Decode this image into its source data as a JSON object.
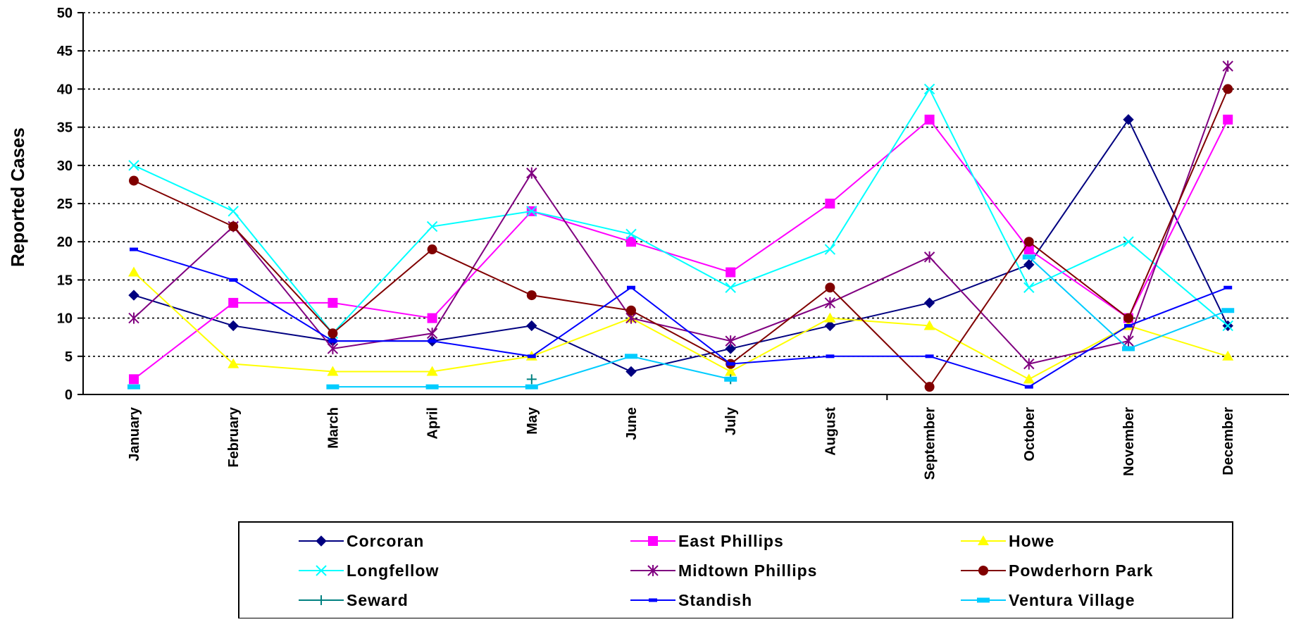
{
  "chart_data": {
    "type": "line",
    "title": "",
    "xlabel": "",
    "ylabel": "Reported Cases",
    "ylim": [
      0,
      50
    ],
    "y_ticks": [
      0,
      5,
      10,
      15,
      20,
      25,
      30,
      35,
      40,
      45,
      50
    ],
    "grid": "horizontal dotted",
    "legend_position": "bottom",
    "categories": [
      "January",
      "February",
      "March",
      "April",
      "May",
      "June",
      "July",
      "August",
      "September",
      "October",
      "November",
      "December"
    ],
    "series": [
      {
        "name": "Corcoran",
        "color": "#000080",
        "marker": "diamond",
        "values": [
          13,
          9,
          7,
          7,
          9,
          3,
          6,
          9,
          12,
          17,
          36,
          9
        ]
      },
      {
        "name": "East Phillips",
        "color": "#FF00FF",
        "marker": "square",
        "values": [
          2,
          12,
          12,
          10,
          24,
          20,
          16,
          25,
          36,
          19,
          10,
          36
        ]
      },
      {
        "name": "Howe",
        "color": "#FFFF00",
        "marker": "triangle",
        "values": [
          16,
          4,
          3,
          3,
          5,
          10,
          3,
          10,
          9,
          2,
          9,
          5
        ]
      },
      {
        "name": "Longfellow",
        "color": "#00FFFF",
        "marker": "x",
        "values": [
          30,
          24,
          8,
          22,
          24,
          21,
          14,
          19,
          40,
          14,
          20,
          9
        ]
      },
      {
        "name": "Midtown Phillips",
        "color": "#800080",
        "marker": "star",
        "values": [
          10,
          22,
          6,
          8,
          29,
          10,
          7,
          12,
          18,
          4,
          7,
          43
        ]
      },
      {
        "name": "Powderhorn Park",
        "color": "#800000",
        "marker": "circle",
        "values": [
          28,
          22,
          8,
          19,
          13,
          11,
          4,
          14,
          1,
          20,
          10,
          40
        ]
      },
      {
        "name": "Seward",
        "color": "#008080",
        "marker": "plus",
        "values": [
          null,
          null,
          null,
          null,
          2,
          null,
          2,
          null,
          null,
          null,
          null,
          null
        ]
      },
      {
        "name": "Standish",
        "color": "#0000FF",
        "marker": "dash",
        "values": [
          19,
          15,
          7,
          7,
          5,
          14,
          4,
          5,
          5,
          1,
          9,
          14
        ]
      },
      {
        "name": "Ventura Village",
        "color": "#00CCFF",
        "marker": "bar",
        "values": [
          1,
          null,
          1,
          1,
          1,
          5,
          2,
          null,
          null,
          18,
          6,
          11
        ]
      }
    ]
  }
}
